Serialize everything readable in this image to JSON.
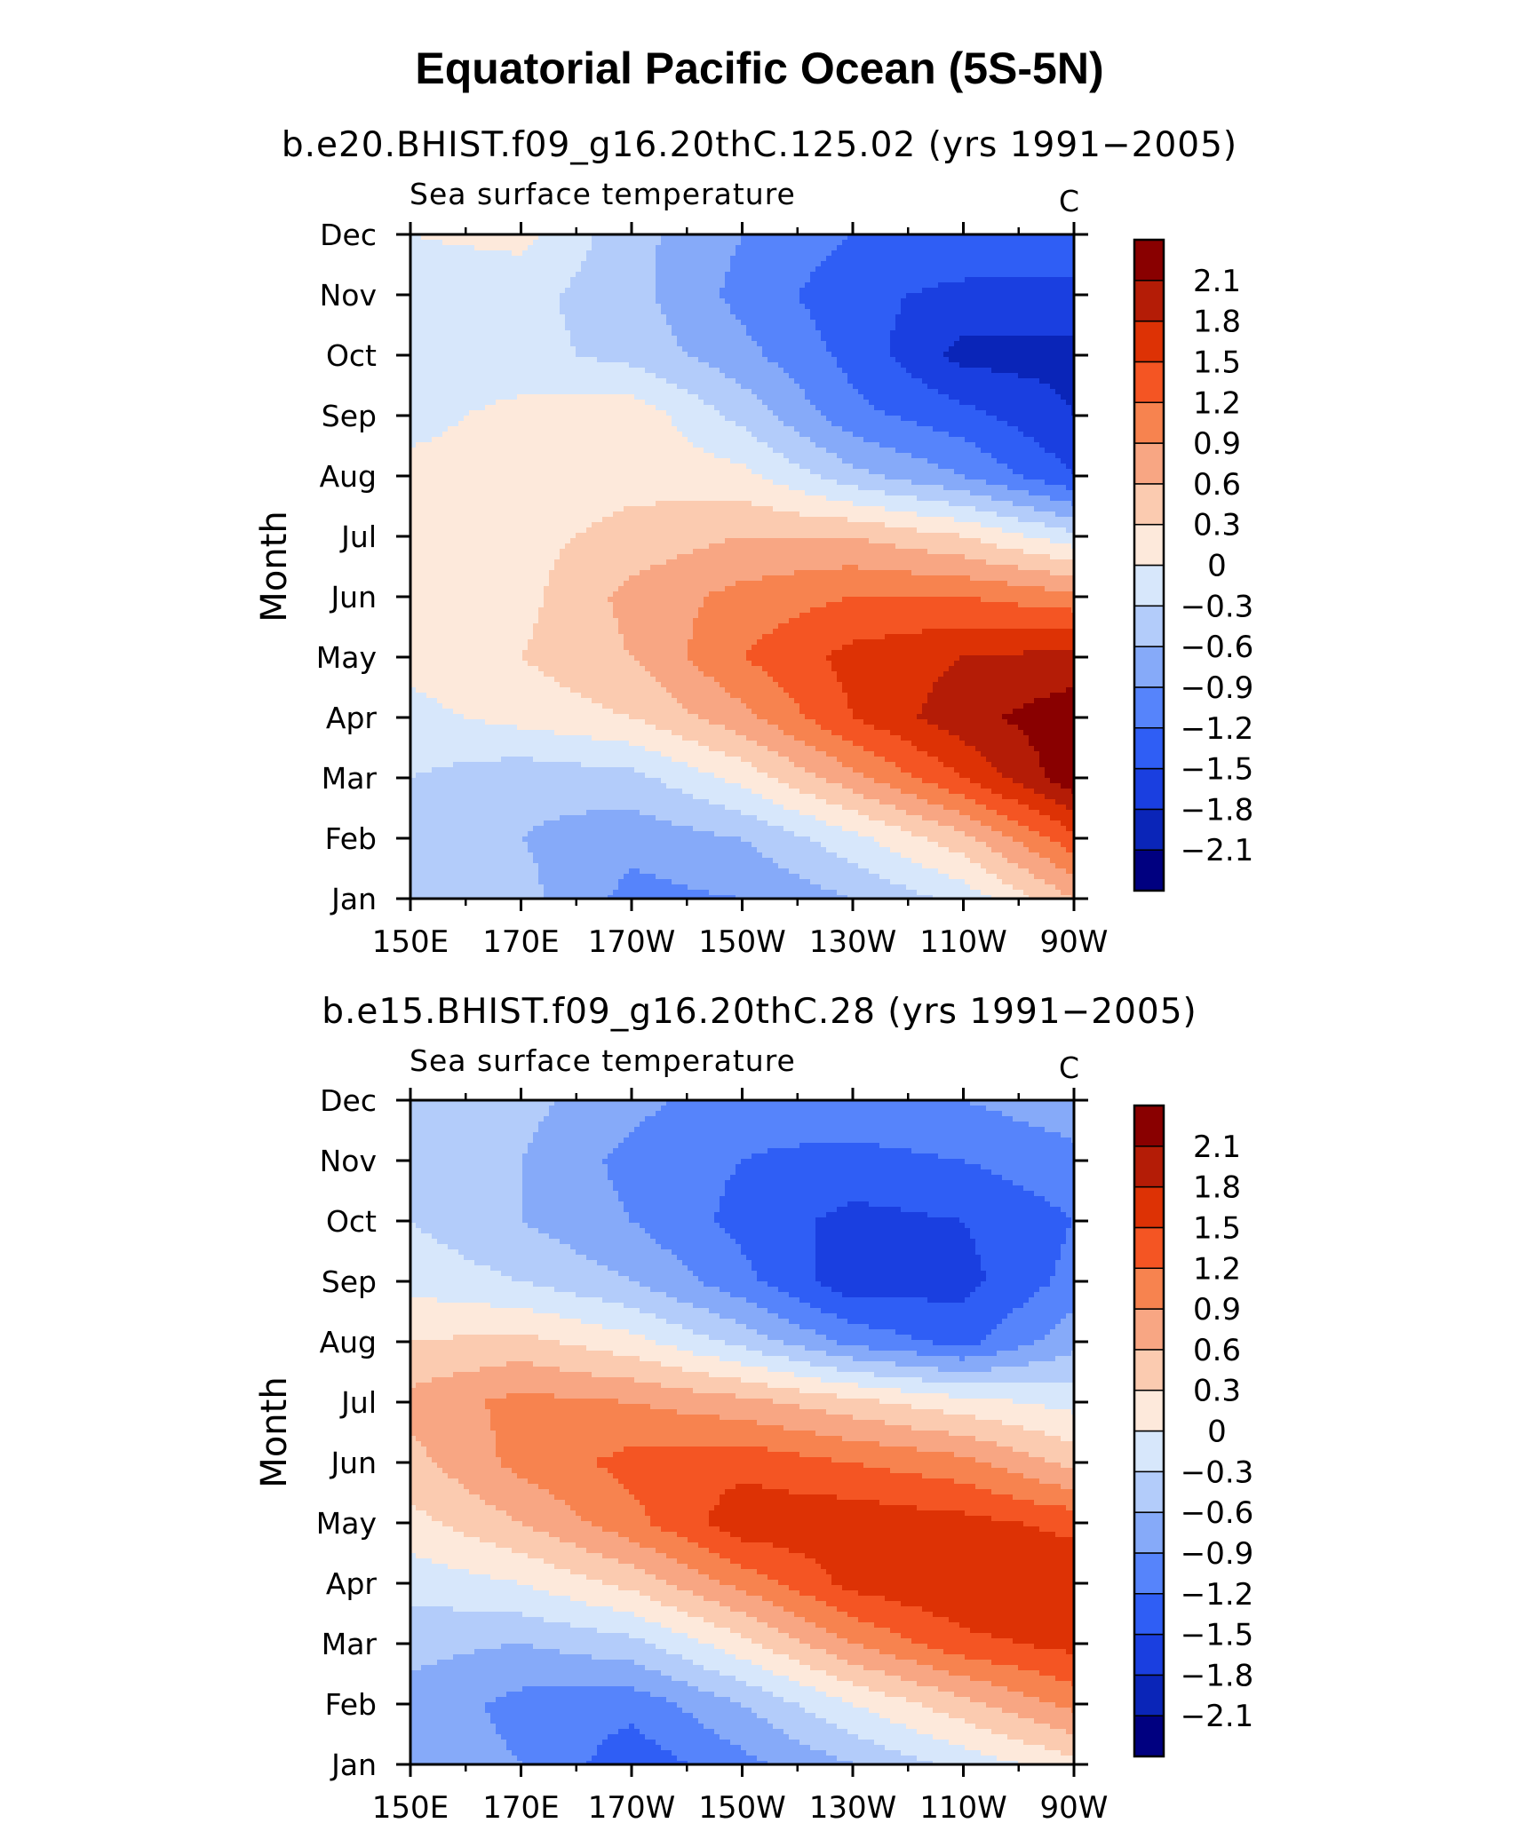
{
  "title": "Equatorial Pacific Ocean (5S-5N)",
  "colors": {
    "levels": [
      "#000080",
      "#0a25b8",
      "#1a3fe0",
      "#2f5ef5",
      "#5684fb",
      "#86aaf9",
      "#b3ccfa",
      "#d7e7fb",
      "#fde9db",
      "#fbcbb0",
      "#f8a683",
      "#f7834f",
      "#f45523",
      "#dd3205",
      "#b41c06",
      "#890000"
    ],
    "axis": "#000000"
  },
  "colorbar": {
    "labels": [
      "2.1",
      "1.8",
      "1.5",
      "1.2",
      "0.9",
      "0.6",
      "0.3",
      "0",
      "−0.3",
      "−0.6",
      "−0.9",
      "−1.2",
      "−1.5",
      "−1.8",
      "−2.1"
    ]
  },
  "chart_data": [
    {
      "type": "heatmap",
      "subtitle": "b.e20.BHIST.f09_g16.20thC.125.02 (yrs 1991−2005)",
      "variable": "Sea surface temperature",
      "units": "C",
      "ylabel": "Month",
      "x_tick_labels": [
        "150E",
        "170E",
        "170W",
        "150W",
        "130W",
        "110W",
        "90W"
      ],
      "y_tick_labels": [
        "Jan",
        "Feb",
        "Mar",
        "Apr",
        "May",
        "Jun",
        "Jul",
        "Aug",
        "Sep",
        "Oct",
        "Nov",
        "Dec"
      ],
      "x_range_deg_east": [
        150,
        270
      ],
      "levels": [
        -2.1,
        -1.8,
        -1.5,
        -1.2,
        -0.9,
        -0.6,
        -0.3,
        0,
        0.3,
        0.6,
        0.9,
        1.2,
        1.5,
        1.8,
        2.1
      ],
      "longitudes": [
        150,
        170,
        190,
        210,
        230,
        250,
        270
      ],
      "values": [
        [
          -0.3,
          -0.5,
          -1.0,
          -0.9,
          -0.6,
          -0.2,
          0.6
        ],
        [
          -0.3,
          -0.6,
          -0.8,
          -0.6,
          -0.1,
          0.5,
          1.4
        ],
        [
          -0.3,
          -0.5,
          -0.4,
          0.1,
          0.8,
          1.5,
          2.3
        ],
        [
          -0.1,
          0.1,
          0.3,
          0.8,
          1.5,
          2.0,
          2.3
        ],
        [
          0.1,
          0.3,
          0.6,
          1.2,
          1.6,
          1.8,
          1.9
        ],
        [
          0.3,
          0.2,
          0.7,
          1.0,
          1.2,
          1.2,
          1.0
        ],
        [
          0.1,
          0.2,
          0.4,
          0.6,
          0.6,
          0.3,
          -0.2
        ],
        [
          0.1,
          0.1,
          0.2,
          0.1,
          -0.5,
          -0.9,
          -1.5
        ],
        [
          -0.1,
          0.1,
          0.2,
          -0.4,
          -1.1,
          -1.4,
          -1.8
        ],
        [
          -0.2,
          -0.2,
          -0.4,
          -0.8,
          -1.3,
          -1.9,
          -1.9
        ],
        [
          -0.2,
          -0.2,
          -0.5,
          -1.0,
          -1.4,
          -1.6,
          -1.6
        ],
        [
          0.0,
          0.1,
          -0.5,
          -0.9,
          -1.2,
          -1.2,
          -1.3
        ]
      ]
    },
    {
      "type": "heatmap",
      "subtitle": "b.e15.BHIST.f09_g16.20thC.28 (yrs 1991−2005)",
      "variable": "Sea surface temperature",
      "units": "C",
      "ylabel": "Month",
      "x_tick_labels": [
        "150E",
        "170E",
        "170W",
        "150W",
        "130W",
        "110W",
        "90W"
      ],
      "y_tick_labels": [
        "Jan",
        "Feb",
        "Mar",
        "Apr",
        "May",
        "Jun",
        "Jul",
        "Aug",
        "Sep",
        "Oct",
        "Nov",
        "Dec"
      ],
      "x_range_deg_east": [
        150,
        270
      ],
      "levels": [
        -2.1,
        -1.8,
        -1.5,
        -1.2,
        -0.9,
        -0.6,
        -0.3,
        0,
        0.3,
        0.6,
        0.9,
        1.2,
        1.5,
        1.8,
        2.1
      ],
      "longitudes": [
        150,
        170,
        190,
        210,
        230,
        250,
        270
      ],
      "values": [
        [
          -0.7,
          -0.9,
          -1.4,
          -1.0,
          -0.6,
          -0.2,
          0.2
        ],
        [
          -0.7,
          -1.0,
          -1.1,
          -0.6,
          0.0,
          0.5,
          1.0
        ],
        [
          -0.5,
          -0.6,
          -0.4,
          0.2,
          0.9,
          1.4,
          1.6
        ],
        [
          -0.2,
          0.0,
          0.4,
          1.0,
          1.6,
          1.8,
          1.8
        ],
        [
          0.2,
          0.6,
          1.1,
          1.7,
          1.7,
          1.6,
          1.4
        ],
        [
          0.5,
          1.0,
          1.3,
          1.4,
          1.2,
          1.0,
          0.5
        ],
        [
          0.7,
          1.0,
          0.9,
          0.7,
          0.4,
          0.1,
          -0.1
        ],
        [
          0.3,
          0.4,
          0.1,
          -0.4,
          -1.0,
          -1.3,
          -0.7
        ],
        [
          -0.1,
          -0.3,
          -0.6,
          -1.1,
          -1.7,
          -1.6,
          -1.1
        ],
        [
          -0.3,
          -0.6,
          -0.9,
          -1.3,
          -1.6,
          -1.5,
          -1.2
        ],
        [
          -0.3,
          -0.6,
          -1.0,
          -1.2,
          -1.3,
          -1.2,
          -1.0
        ],
        [
          -0.3,
          -0.5,
          -0.8,
          -1.1,
          -1.0,
          -0.9,
          -0.7
        ]
      ]
    }
  ]
}
